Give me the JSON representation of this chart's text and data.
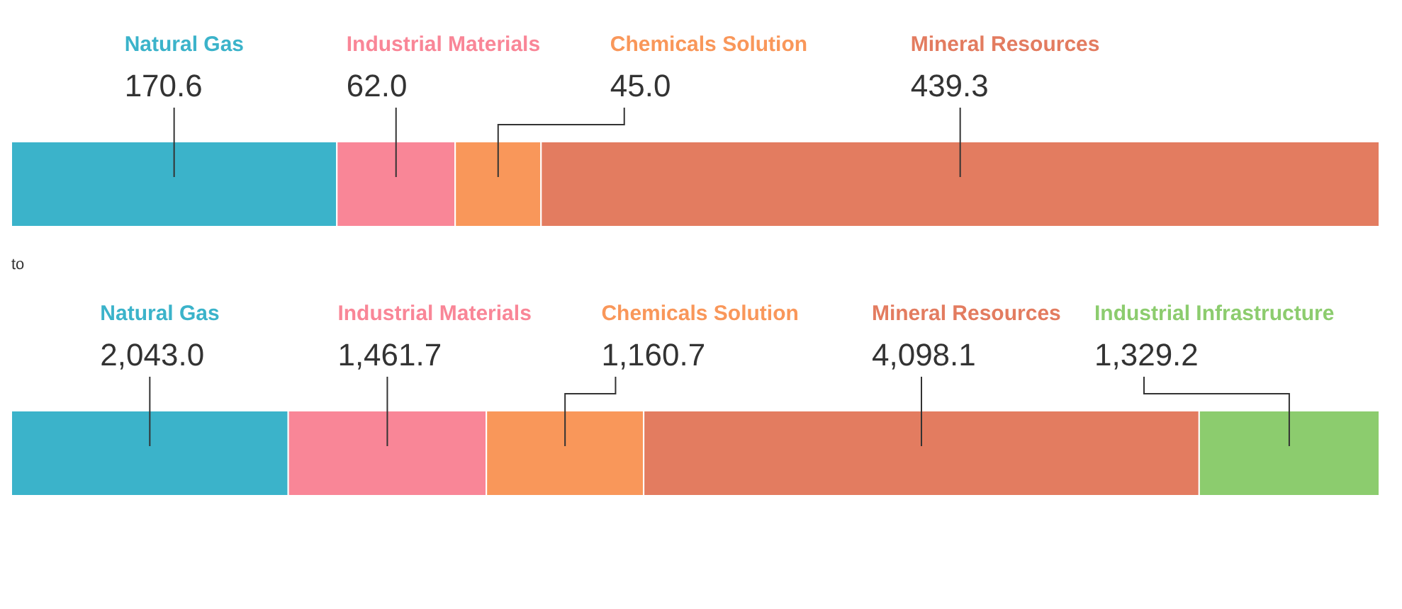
{
  "chart_data": [
    {
      "type": "bar",
      "orientation": "horizontal",
      "stacked": true,
      "categories": [
        null
      ],
      "annotations": [
        "to"
      ],
      "series": [
        {
          "name": "Natural Gas",
          "color": "#3bb3ca",
          "values": [
            170.6
          ],
          "value_labels": [
            "170.6"
          ]
        },
        {
          "name": "Industrial Materials",
          "color": "#f98697",
          "values": [
            62.0
          ],
          "value_labels": [
            "62.0"
          ]
        },
        {
          "name": "Chemicals Solution",
          "color": "#f9975a",
          "values": [
            45.0
          ],
          "value_labels": [
            "45.0"
          ]
        },
        {
          "name": "Mineral Resources",
          "color": "#e37c60",
          "values": [
            439.3
          ],
          "value_labels": [
            "439.3"
          ]
        }
      ]
    },
    {
      "type": "bar",
      "orientation": "horizontal",
      "stacked": true,
      "categories": [
        null
      ],
      "series": [
        {
          "name": "Natural Gas",
          "color": "#3bb3ca",
          "values": [
            2043.0
          ],
          "value_labels": [
            "2,043.0"
          ]
        },
        {
          "name": "Industrial Materials",
          "color": "#f98697",
          "values": [
            1461.7
          ],
          "value_labels": [
            "1,461.7"
          ]
        },
        {
          "name": "Chemicals Solution",
          "color": "#f9975a",
          "values": [
            1160.7
          ],
          "value_labels": [
            "1,160.7"
          ]
        },
        {
          "name": "Mineral Resources",
          "color": "#e37c60",
          "values": [
            4098.1
          ],
          "value_labels": [
            "4,098.1"
          ]
        },
        {
          "name": "Industrial Infrastructure",
          "color": "#8ccc6e",
          "values": [
            1329.2
          ],
          "value_labels": [
            "1,329.2"
          ]
        }
      ]
    }
  ]
}
